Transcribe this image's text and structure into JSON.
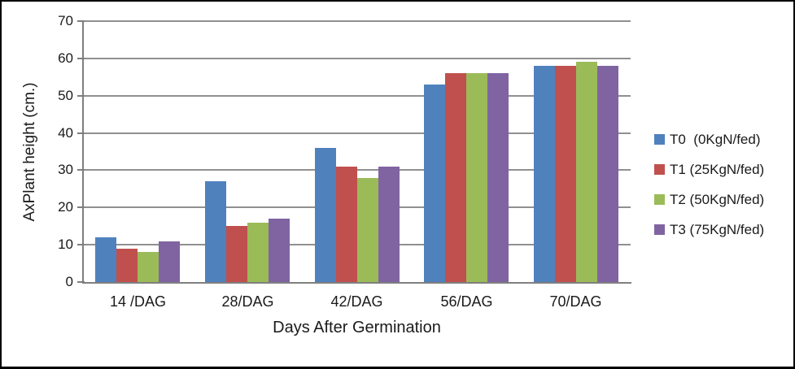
{
  "chart_data": {
    "type": "bar",
    "title": "",
    "xlabel": "Days After Germination",
    "ylabel": "AxPlant height (cm.)",
    "categories": [
      "14 /DAG",
      "28/DAG",
      "42/DAG",
      "56/DAG",
      "70/DAG"
    ],
    "series": [
      {
        "name": "T0",
        "legend_label": "T0  (0KgN/fed)",
        "color": "#4F81BD",
        "values": [
          12,
          27,
          36,
          53,
          58
        ]
      },
      {
        "name": "T1",
        "legend_label": "T1 (25KgN/fed)",
        "color": "#C0504D",
        "values": [
          9,
          15,
          31,
          56,
          58
        ]
      },
      {
        "name": "T2",
        "legend_label": "T2 (50KgN/fed)",
        "color": "#9BBB59",
        "values": [
          8,
          16,
          28,
          56,
          59
        ]
      },
      {
        "name": "T3",
        "legend_label": "T3 (75KgN/fed)",
        "color": "#8064A2",
        "values": [
          11,
          17,
          31,
          56,
          58
        ]
      }
    ],
    "ylim": [
      0,
      70
    ],
    "ytick_step": 10,
    "ytick_labels": [
      "0",
      "10",
      "20",
      "30",
      "40",
      "50",
      "60",
      "70"
    ],
    "grid": true,
    "legend_position": "right",
    "colors": {
      "gridline": "#909090",
      "axis": "#7f7f7f",
      "background": "#ffffff",
      "border": "#000000",
      "text": "#1a1a1a"
    }
  }
}
